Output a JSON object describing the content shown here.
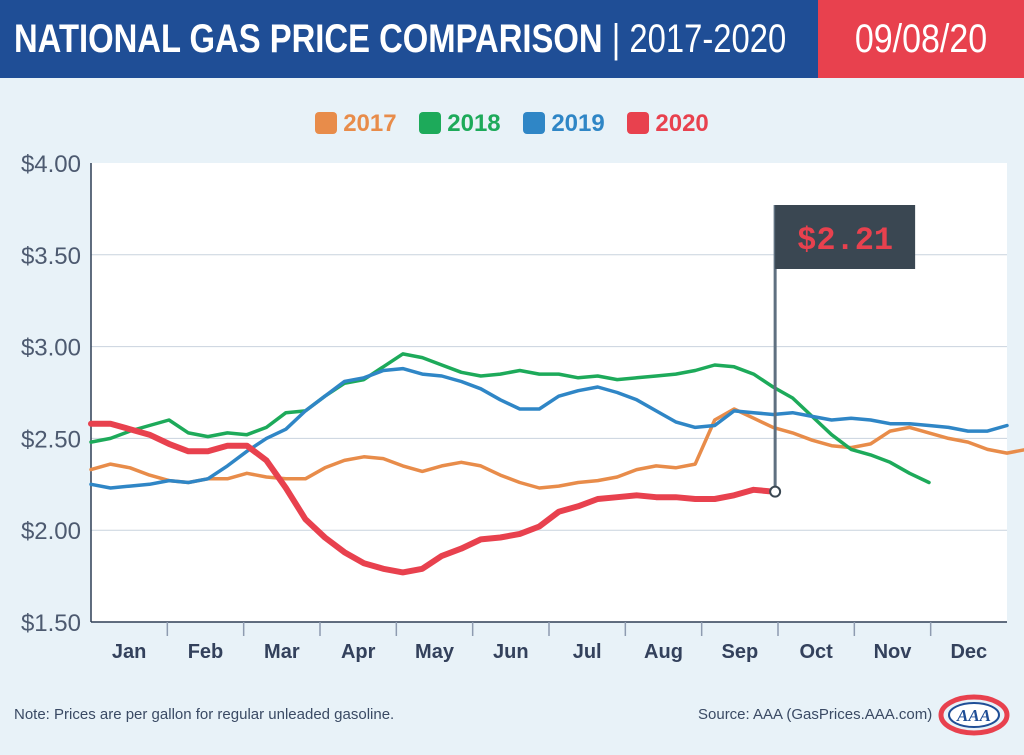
{
  "header": {
    "title": "NATIONAL GAS PRICE COMPARISON",
    "separator": "|",
    "subtitle": "2017-2020",
    "date": "09/08/20"
  },
  "colors": {
    "header_blue": "#1f4e96",
    "header_red": "#e8414e",
    "2017": "#e88c4a",
    "2018": "#1daa5a",
    "2019": "#2f86c6",
    "2020": "#e8414e"
  },
  "chart_data": {
    "type": "line",
    "ylim": [
      1.5,
      4.0
    ],
    "yticks": [
      "$4.00",
      "$3.50",
      "$3.00",
      "$2.50",
      "$2.00",
      "$1.50"
    ],
    "ytick_values": [
      4.0,
      3.5,
      3.0,
      2.5,
      2.0,
      1.5
    ],
    "months": [
      "Jan",
      "Feb",
      "Mar",
      "Apr",
      "May",
      "Jun",
      "Jul",
      "Aug",
      "Sep",
      "Oct",
      "Nov",
      "Dec"
    ],
    "grid": true,
    "legend_position": "top-center",
    "series": [
      {
        "name": "2017",
        "color": "#e88c4a",
        "values": [
          2.33,
          2.36,
          2.34,
          2.3,
          2.27,
          2.26,
          2.28,
          2.28,
          2.31,
          2.29,
          2.28,
          2.28,
          2.34,
          2.38,
          2.4,
          2.39,
          2.35,
          2.32,
          2.35,
          2.37,
          2.35,
          2.3,
          2.26,
          2.23,
          2.24,
          2.26,
          2.27,
          2.29,
          2.33,
          2.35,
          2.34,
          2.36,
          2.6,
          2.66,
          2.61,
          2.56,
          2.53,
          2.49,
          2.46,
          2.45,
          2.47,
          2.54,
          2.56,
          2.53,
          2.5,
          2.48,
          2.44,
          2.42,
          2.44,
          2.48
        ]
      },
      {
        "name": "2018",
        "color": "#1daa5a",
        "values": [
          2.48,
          2.5,
          2.54,
          2.57,
          2.6,
          2.53,
          2.51,
          2.53,
          2.52,
          2.56,
          2.64,
          2.65,
          2.73,
          2.8,
          2.82,
          2.89,
          2.96,
          2.94,
          2.9,
          2.86,
          2.84,
          2.85,
          2.87,
          2.85,
          2.85,
          2.83,
          2.84,
          2.82,
          2.83,
          2.84,
          2.85,
          2.87,
          2.9,
          2.89,
          2.85,
          2.78,
          2.72,
          2.62,
          2.52,
          2.44,
          2.41,
          2.37,
          2.31,
          2.26
        ]
      },
      {
        "name": "2019",
        "color": "#2f86c6",
        "values": [
          2.25,
          2.23,
          2.24,
          2.25,
          2.27,
          2.26,
          2.28,
          2.35,
          2.43,
          2.5,
          2.55,
          2.65,
          2.73,
          2.81,
          2.83,
          2.87,
          2.88,
          2.85,
          2.84,
          2.81,
          2.77,
          2.71,
          2.66,
          2.66,
          2.73,
          2.76,
          2.78,
          2.75,
          2.71,
          2.65,
          2.59,
          2.56,
          2.57,
          2.65,
          2.64,
          2.63,
          2.64,
          2.62,
          2.6,
          2.61,
          2.6,
          2.58,
          2.58,
          2.57,
          2.56,
          2.54,
          2.54,
          2.57
        ]
      },
      {
        "name": "2020",
        "color": "#e8414e",
        "values": [
          2.58,
          2.58,
          2.55,
          2.52,
          2.47,
          2.43,
          2.43,
          2.46,
          2.46,
          2.38,
          2.23,
          2.06,
          1.96,
          1.88,
          1.82,
          1.79,
          1.77,
          1.79,
          1.86,
          1.9,
          1.95,
          1.96,
          1.98,
          2.02,
          2.1,
          2.13,
          2.17,
          2.18,
          2.19,
          2.18,
          2.18,
          2.17,
          2.17,
          2.19,
          2.22,
          2.21
        ]
      }
    ],
    "annotation": {
      "label": "$2.21",
      "value": 2.21
    }
  },
  "note": "Note: Prices are per gallon for regular unleaded gasoline.",
  "source": "Source: AAA (GasPrices.AAA.com)",
  "logo_text": "AAA"
}
